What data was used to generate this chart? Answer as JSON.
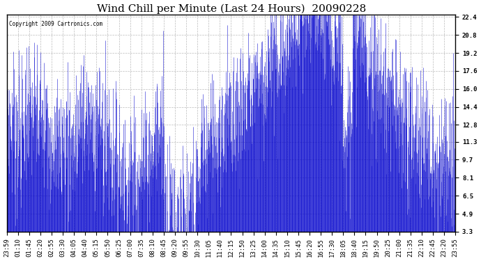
{
  "title": "Wind Chill per Minute (Last 24 Hours)  20090228",
  "copyright": "Copyright 2009 Cartronics.com",
  "line_color": "#0000CC",
  "bg_color": "#FFFFFF",
  "plot_bg_color": "#FFFFFF",
  "yticks": [
    3.3,
    4.9,
    6.5,
    8.1,
    9.7,
    11.3,
    12.8,
    14.4,
    16.0,
    17.6,
    19.2,
    20.8,
    22.4
  ],
  "ylim": [
    3.3,
    22.4
  ],
  "xtick_labels": [
    "23:59",
    "01:10",
    "01:45",
    "02:20",
    "02:55",
    "03:30",
    "04:05",
    "04:40",
    "05:15",
    "05:50",
    "06:25",
    "07:00",
    "07:35",
    "08:10",
    "08:45",
    "09:20",
    "09:55",
    "10:30",
    "11:05",
    "11:40",
    "12:15",
    "12:50",
    "13:25",
    "14:00",
    "14:35",
    "15:10",
    "15:45",
    "16:20",
    "16:55",
    "17:30",
    "18:05",
    "18:40",
    "19:15",
    "19:50",
    "20:25",
    "21:00",
    "21:35",
    "22:10",
    "22:45",
    "23:20",
    "23:55"
  ],
  "grid_color": "#BBBBBB",
  "title_fontsize": 11,
  "tick_fontsize": 6.5
}
